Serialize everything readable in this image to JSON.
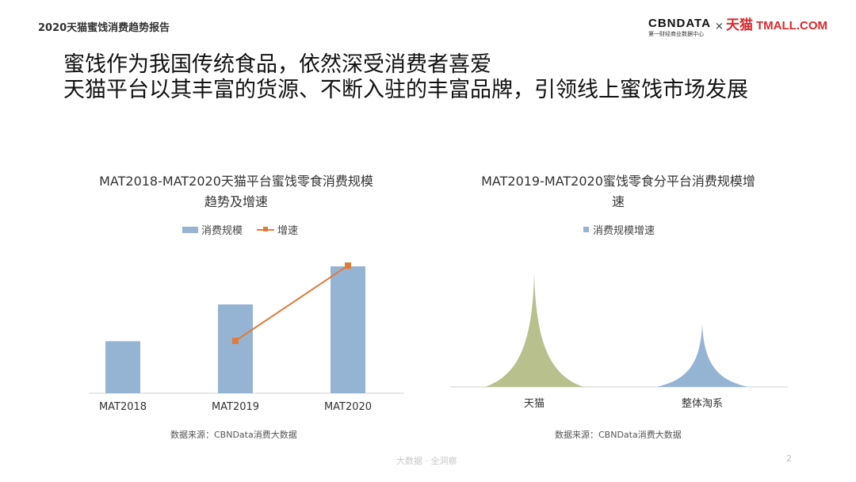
{
  "report_title": "2020天猫蜜饯消费趋势报告",
  "logo": {
    "cbn": "CBNDATA",
    "cbn_sub": "第一财经商业数据中心",
    "times": "×",
    "tmall_cn": "天猫",
    "tmall_en": "TMALL.COM"
  },
  "headline": {
    "line1": "蜜饯作为我国传统食品，依然深受消费者喜爱",
    "line2": "天猫平台以其丰富的货源、不断入驻的丰富品牌，引领线上蜜饯市场发展"
  },
  "watermark": "大数据 · 全洞察",
  "page_number": "2",
  "colors": {
    "bar": "#95B3D3",
    "line": "#E07B39",
    "tmall_area": "#B8C08E",
    "overall_area": "#95B3D3",
    "tmall_red": "#E0262A"
  },
  "chart_data": [
    {
      "type": "bar",
      "title": "MAT2018-MAT2020天猫平台蜜饯零食消费规模趋势及增速",
      "title_line1": "MAT2018-MAT2020天猫平台蜜饯零食消费规模",
      "title_line2": "趋势及增速",
      "categories": [
        "MAT2018",
        "MAT2019",
        "MAT2020"
      ],
      "series": [
        {
          "name": "消费规模",
          "type": "bar",
          "values": [
            0.41,
            0.7,
            1.0
          ]
        },
        {
          "name": "增速",
          "type": "line",
          "values": [
            null,
            0.68,
            1.0
          ]
        }
      ],
      "axes_hidden": true,
      "source": "数据来源：CBNData消费大数据"
    },
    {
      "type": "area",
      "title": "MAT2019-MAT2020蜜饯零食分平台消费规模增速",
      "title_line1": "MAT2019-MAT2020蜜饯零食分平台消费规模增",
      "title_line2": "速",
      "categories": [
        "天猫",
        "整体淘系"
      ],
      "series": [
        {
          "name": "消费规模增速",
          "values": [
            1.0,
            0.55
          ]
        }
      ],
      "axes_hidden": true,
      "source": "数据来源：CBNData消费大数据"
    }
  ]
}
